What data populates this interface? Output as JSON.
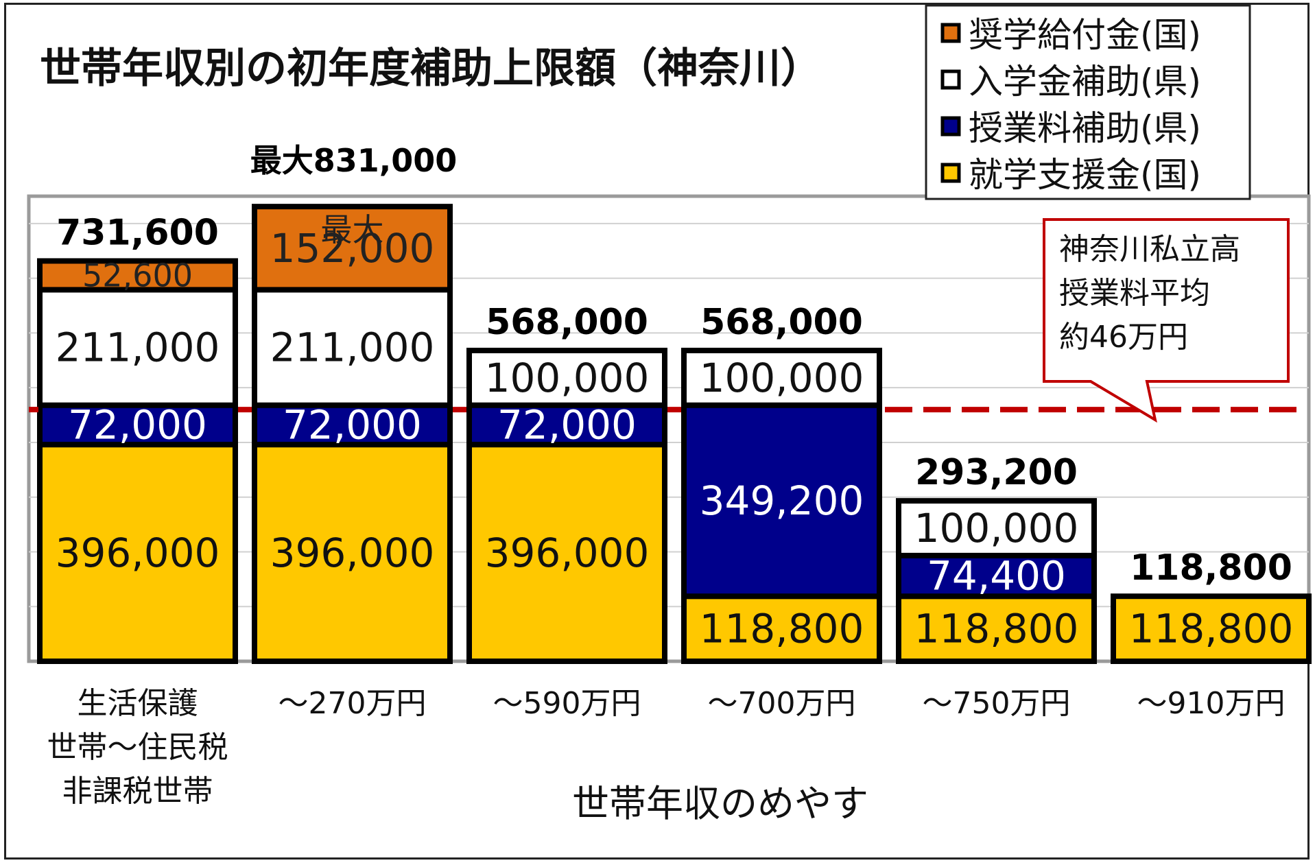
{
  "chart_data": {
    "type": "bar",
    "stacked": true,
    "title": "世帯年収別の初年度補助上限額（神奈川）",
    "xlabel": "世帯年収のめやす",
    "ylabel": "",
    "ylim": [
      0,
      850000
    ],
    "grid": true,
    "legend_position": "top-right",
    "categories": [
      [
        "生活保護",
        "世帯～住民税",
        "非課税世帯"
      ],
      [
        "～270万円"
      ],
      [
        "～590万円"
      ],
      [
        "～700万円"
      ],
      [
        "～750万円"
      ],
      [
        "～910万円"
      ]
    ],
    "series": [
      {
        "name": "就学支援金(国)",
        "color": "#ffc800",
        "text_color": "#111111",
        "values": [
          396000,
          396000,
          396000,
          118800,
          118800,
          118800
        ],
        "labels": [
          "396,000",
          "396,000",
          "396,000",
          "118,800",
          "118,800",
          "118,800"
        ]
      },
      {
        "name": "授業料補助(県)",
        "color": "#00008b",
        "text_color": "#ffffff",
        "values": [
          72000,
          72000,
          72000,
          349200,
          74400,
          0
        ],
        "labels": [
          "72,000",
          "72,000",
          "72,000",
          "349,200",
          "74,400",
          ""
        ]
      },
      {
        "name": "入学金補助(県)",
        "color": "#ffffff",
        "text_color": "#111111",
        "values": [
          211000,
          211000,
          100000,
          100000,
          100000,
          0
        ],
        "labels": [
          "211,000",
          "211,000",
          "100,000",
          "100,000",
          "100,000",
          ""
        ]
      },
      {
        "name": "奨学給付金(国)",
        "color": "#e0700f",
        "text_color": "#222222",
        "values": [
          52600,
          152000,
          0,
          0,
          0,
          0
        ],
        "labels": [
          "52,600",
          "152,000",
          "",
          "",
          "",
          ""
        ]
      }
    ],
    "totals": [
      "731,600",
      "",
      "568,000",
      "568,000",
      "293,200",
      "118,800"
    ],
    "max_annotation": {
      "category_index": 1,
      "text": "最大831,000",
      "inner_text": "最大"
    },
    "legend_order": [
      3,
      2,
      1,
      0
    ],
    "reference_line": {
      "value": 460000,
      "color": "#c00000",
      "style": "dashed",
      "label": [
        "神奈川私立高",
        "授業料平均",
        "約46万円"
      ]
    }
  }
}
